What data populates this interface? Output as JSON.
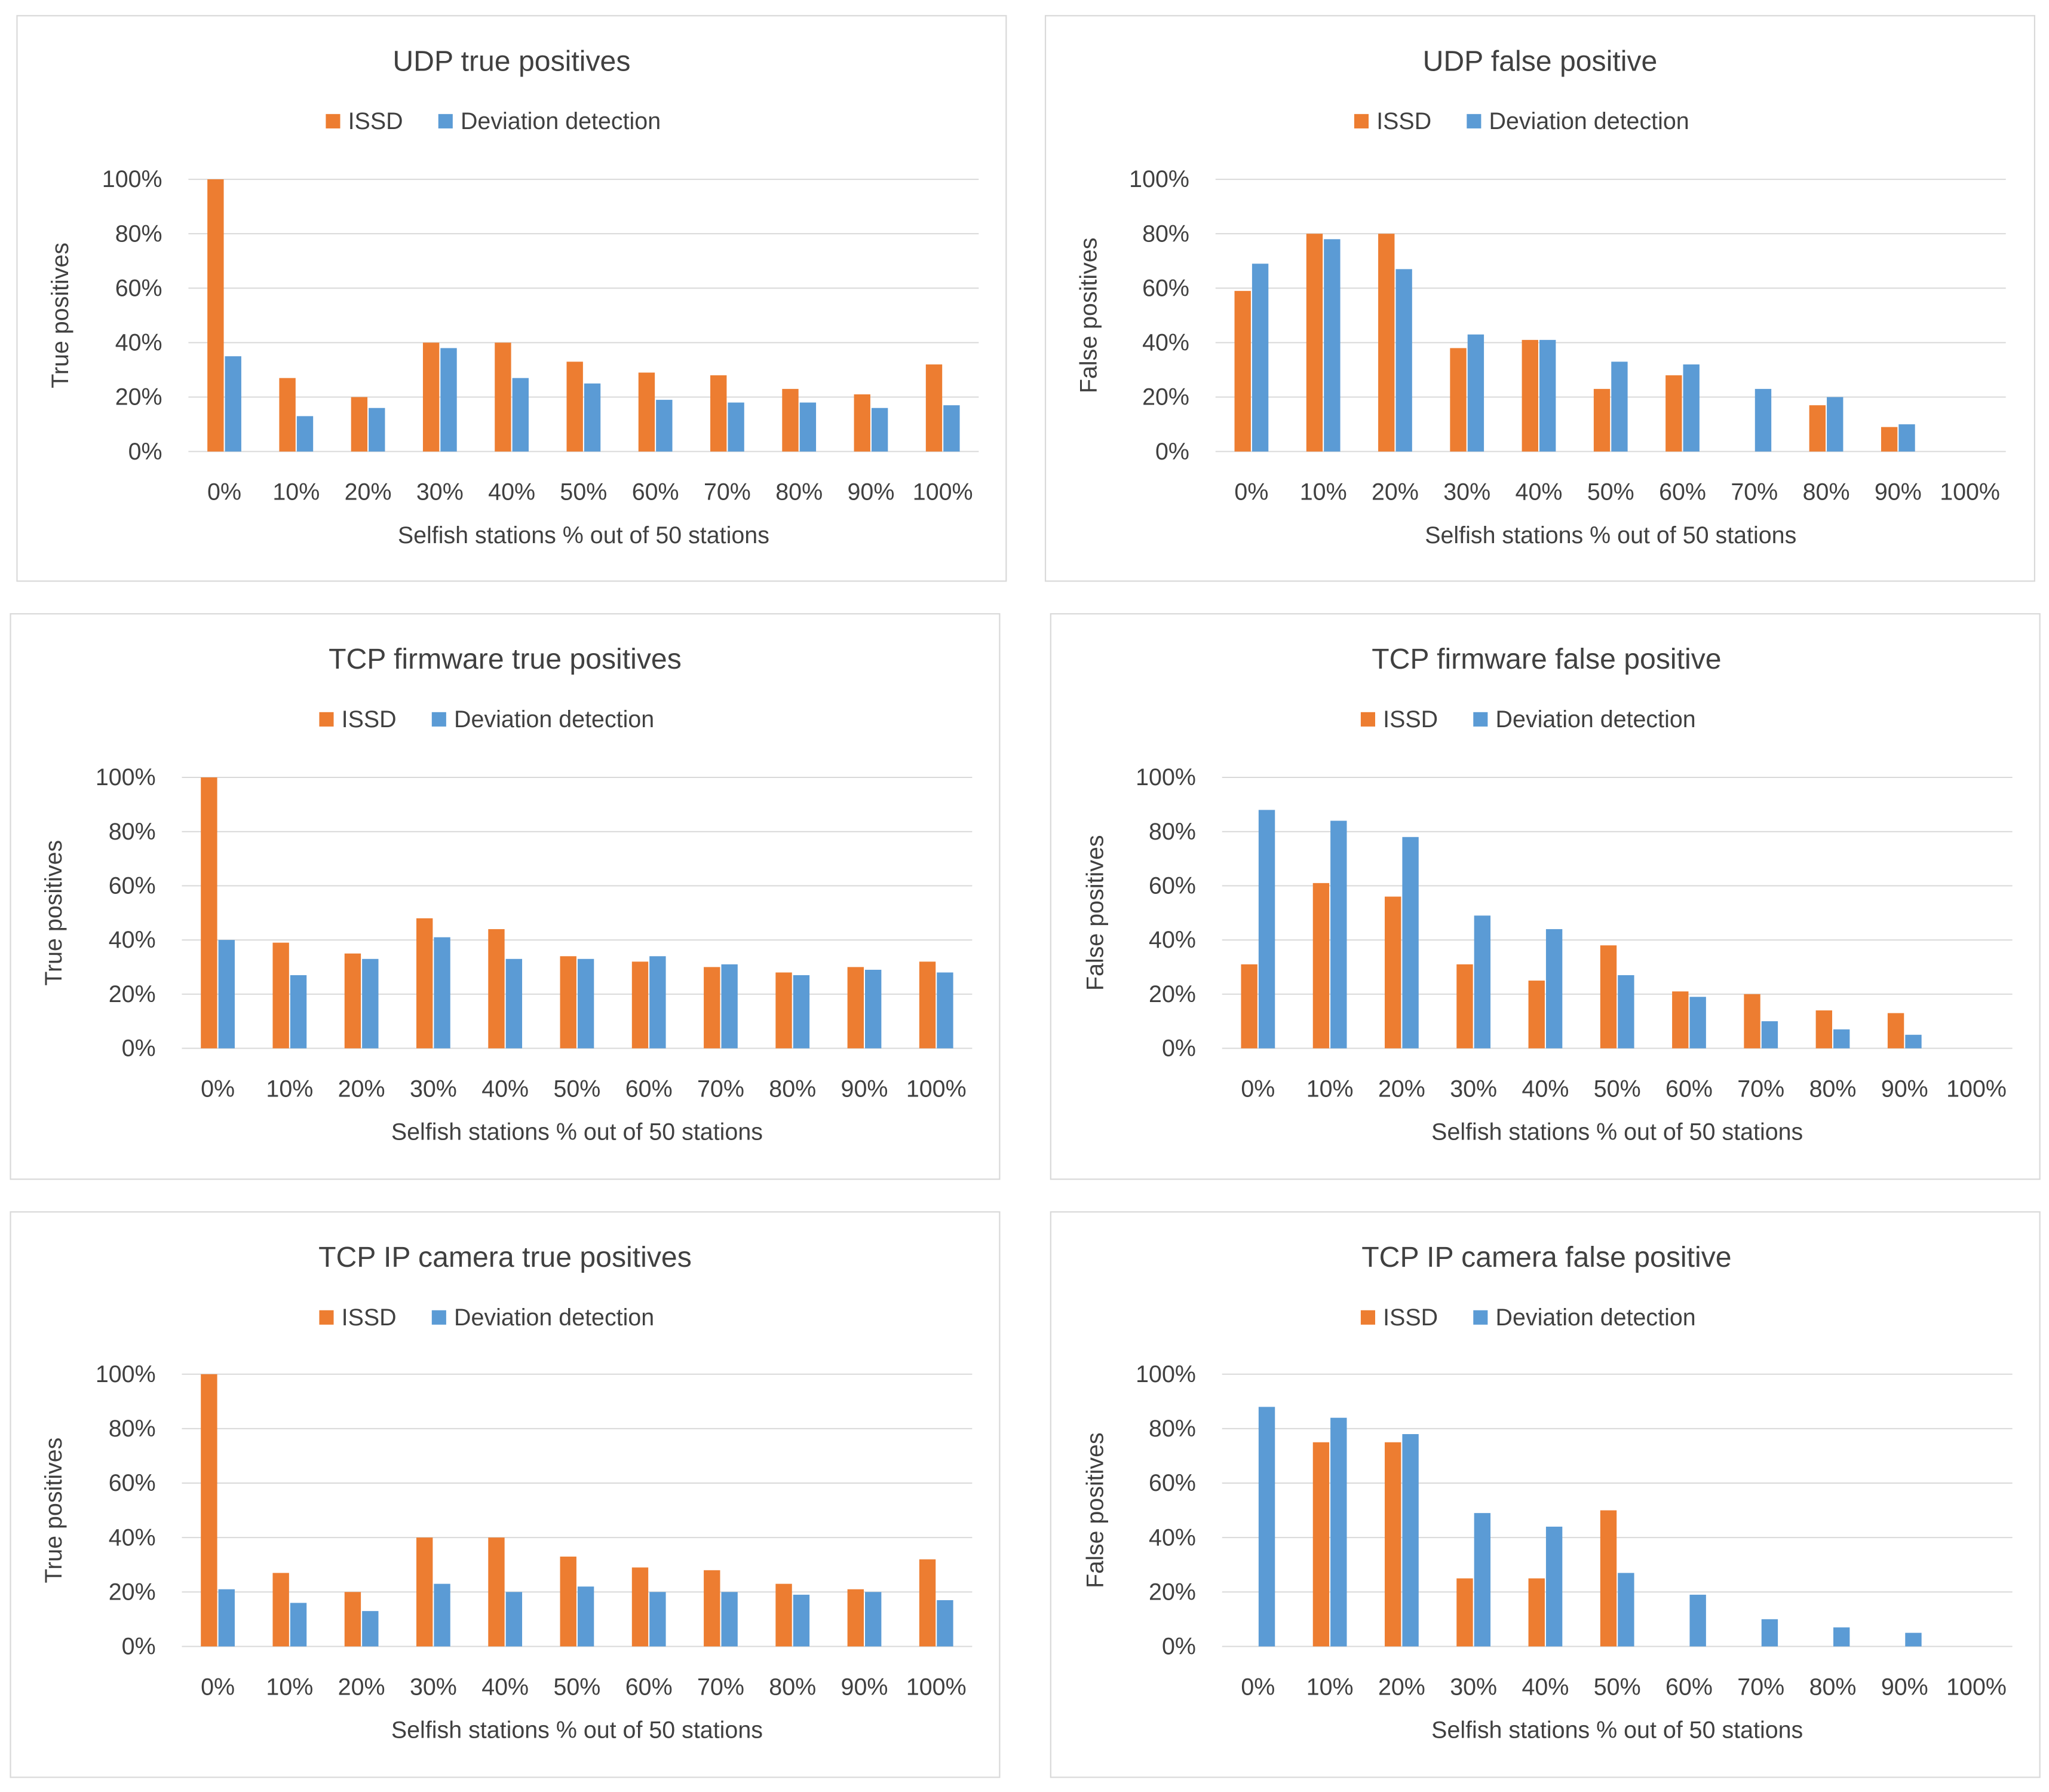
{
  "colors": {
    "issd": "#ED7D31",
    "deviation": "#5B9BD5",
    "grid": "#D9D9D9",
    "text": "#404040",
    "border": "#D9D9D9"
  },
  "chart_data": [
    {
      "type": "bar",
      "title": "UDP true positives",
      "xlabel": "Selfish stations % out of 50 stations",
      "ylabel": "True positives",
      "categories": [
        "0%",
        "10%",
        "20%",
        "30%",
        "40%",
        "50%",
        "60%",
        "70%",
        "80%",
        "90%",
        "100%"
      ],
      "ylim": [
        0,
        100
      ],
      "yticks": [
        "0%",
        "20%",
        "40%",
        "60%",
        "80%",
        "100%"
      ],
      "legend_position": "top",
      "series": [
        {
          "name": "ISSD",
          "values": [
            100,
            27,
            20,
            40,
            40,
            33,
            29,
            28,
            23,
            21,
            32
          ]
        },
        {
          "name": "Deviation detection",
          "values": [
            35,
            13,
            16,
            38,
            27,
            25,
            19,
            18,
            18,
            16,
            17
          ]
        }
      ]
    },
    {
      "type": "bar",
      "title": "UDP false positive",
      "xlabel": "Selfish stations % out of 50 stations",
      "ylabel": "False positives",
      "categories": [
        "0%",
        "10%",
        "20%",
        "30%",
        "40%",
        "50%",
        "60%",
        "70%",
        "80%",
        "90%",
        "100%"
      ],
      "ylim": [
        0,
        100
      ],
      "yticks": [
        "0%",
        "20%",
        "40%",
        "60%",
        "80%",
        "100%"
      ],
      "legend_position": "top",
      "series": [
        {
          "name": "ISSD",
          "values": [
            59,
            80,
            80,
            38,
            41,
            23,
            28,
            0,
            17,
            9,
            0
          ]
        },
        {
          "name": "Deviation detection",
          "values": [
            69,
            78,
            67,
            43,
            41,
            33,
            32,
            23,
            20,
            10,
            0
          ]
        }
      ]
    },
    {
      "type": "bar",
      "title": "TCP firmware true positives",
      "xlabel": "Selfish stations % out of 50 stations",
      "ylabel": "True positives",
      "categories": [
        "0%",
        "10%",
        "20%",
        "30%",
        "40%",
        "50%",
        "60%",
        "70%",
        "80%",
        "90%",
        "100%"
      ],
      "ylim": [
        0,
        100
      ],
      "yticks": [
        "0%",
        "20%",
        "40%",
        "60%",
        "80%",
        "100%"
      ],
      "legend_position": "top",
      "series": [
        {
          "name": "ISSD",
          "values": [
            100,
            39,
            35,
            48,
            44,
            34,
            32,
            30,
            28,
            30,
            32
          ]
        },
        {
          "name": "Deviation detection",
          "values": [
            40,
            27,
            33,
            41,
            33,
            33,
            34,
            31,
            27,
            29,
            28
          ]
        }
      ]
    },
    {
      "type": "bar",
      "title": "TCP firmware false positive",
      "xlabel": "Selfish stations % out of 50 stations",
      "ylabel": "False positives",
      "categories": [
        "0%",
        "10%",
        "20%",
        "30%",
        "40%",
        "50%",
        "60%",
        "70%",
        "80%",
        "90%",
        "100%"
      ],
      "ylim": [
        0,
        100
      ],
      "yticks": [
        "0%",
        "20%",
        "40%",
        "60%",
        "80%",
        "100%"
      ],
      "legend_position": "top",
      "series": [
        {
          "name": "ISSD",
          "values": [
            31,
            61,
            56,
            31,
            25,
            38,
            21,
            20,
            14,
            13,
            0
          ]
        },
        {
          "name": "Deviation detection",
          "values": [
            88,
            84,
            78,
            49,
            44,
            27,
            19,
            10,
            7,
            5,
            0
          ]
        }
      ]
    },
    {
      "type": "bar",
      "title": "TCP IP camera true positives",
      "xlabel": "Selfish stations % out of 50 stations",
      "ylabel": "True positives",
      "categories": [
        "0%",
        "10%",
        "20%",
        "30%",
        "40%",
        "50%",
        "60%",
        "70%",
        "80%",
        "90%",
        "100%"
      ],
      "ylim": [
        0,
        100
      ],
      "yticks": [
        "0%",
        "20%",
        "40%",
        "60%",
        "80%",
        "100%"
      ],
      "legend_position": "top",
      "series": [
        {
          "name": "ISSD",
          "values": [
            100,
            27,
            20,
            40,
            40,
            33,
            29,
            28,
            23,
            21,
            32
          ]
        },
        {
          "name": "Deviation detection",
          "values": [
            21,
            16,
            13,
            23,
            20,
            22,
            20,
            20,
            19,
            20,
            17
          ]
        }
      ]
    },
    {
      "type": "bar",
      "title": "TCP IP camera false positive",
      "xlabel": "Selfish stations % out of 50 stations",
      "ylabel": "False positives",
      "categories": [
        "0%",
        "10%",
        "20%",
        "30%",
        "40%",
        "50%",
        "60%",
        "70%",
        "80%",
        "90%",
        "100%"
      ],
      "ylim": [
        0,
        100
      ],
      "yticks": [
        "0%",
        "20%",
        "40%",
        "60%",
        "80%",
        "100%"
      ],
      "legend_position": "top",
      "series": [
        {
          "name": "ISSD",
          "values": [
            0,
            75,
            75,
            25,
            25,
            50,
            0,
            0,
            0,
            0,
            0
          ]
        },
        {
          "name": "Deviation detection",
          "values": [
            88,
            84,
            78,
            49,
            44,
            27,
            19,
            10,
            7,
            5,
            0
          ]
        }
      ]
    }
  ]
}
